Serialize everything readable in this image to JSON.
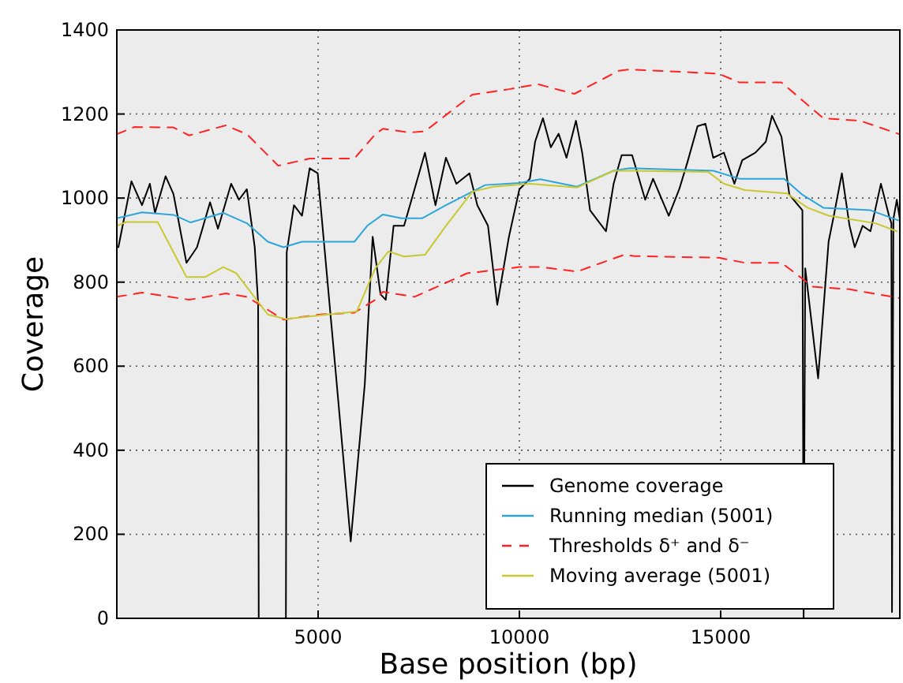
{
  "chart_data": {
    "type": "line",
    "xlabel": "Base position (bp)",
    "ylabel": "Coverage",
    "xlim": [
      0,
      19450
    ],
    "ylim": [
      0,
      1400
    ],
    "xticks": [
      5000,
      10000,
      15000
    ],
    "yticks": [
      0,
      200,
      400,
      600,
      800,
      1000,
      1200,
      1400
    ],
    "grid": true,
    "legend": "bottom right",
    "series": [
      {
        "name": "Genome coverage",
        "color": "#000000",
        "line_style": "solid",
        "x": [
          39,
          363,
          625,
          820,
          949,
          1211,
          1406,
          1730,
          1992,
          2316,
          2512,
          2840,
          3035,
          3230,
          3426,
          3510,
          3525,
          4200,
          4220,
          4400,
          4600,
          4790,
          4990,
          5440,
          5810,
          6160,
          6355,
          6550,
          6680,
          6875,
          7135,
          7655,
          7915,
          8175,
          8435,
          8760,
          8955,
          9220,
          9450,
          9740,
          10000,
          10260,
          10390,
          10585,
          10780,
          10975,
          11170,
          11405,
          11560,
          11755,
          12150,
          12340,
          12540,
          12800,
          13125,
          13320,
          13710,
          13970,
          14170,
          14425,
          14620,
          14815,
          15080,
          15340,
          15535,
          15860,
          16120,
          16275,
          16510,
          16705,
          17030,
          17060,
          17100,
          17420,
          17550,
          17680,
          17810,
          18010,
          18200,
          18330,
          18525,
          18720,
          18980,
          19180,
          19240,
          19255,
          19290,
          19375,
          19450
        ],
        "values": [
          883,
          1040,
          983,
          1034,
          965,
          1052,
          1010,
          846,
          883,
          990,
          927,
          1034,
          996,
          1021,
          883,
          750,
          0,
          0,
          871,
          983,
          958,
          1071,
          1059,
          583,
          183,
          558,
          908,
          771,
          758,
          934,
          934,
          1108,
          983,
          1096,
          1034,
          1059,
          983,
          934,
          746,
          908,
          1021,
          1046,
          1134,
          1190,
          1121,
          1153,
          1096,
          1184,
          1108,
          971,
          921,
          1034,
          1102,
          1102,
          996,
          1046,
          958,
          1021,
          1084,
          1171,
          1177,
          1096,
          1108,
          1034,
          1090,
          1108,
          1134,
          1196,
          1146,
          1008,
          971,
          0,
          833,
          571,
          733,
          896,
          958,
          1059,
          934,
          883,
          934,
          921,
          1034,
          958,
          940,
          15,
          950,
          996,
          950
        ]
      },
      {
        "name": "Running median (5001)",
        "color": "#2ca6d9",
        "line_style": "solid",
        "x": [
          0,
          625,
          1406,
          1836,
          2644,
          3230,
          3750,
          4140,
          4600,
          5900,
          6220,
          6610,
          7070,
          7590,
          8175,
          9150,
          10000,
          10520,
          11430,
          12340,
          12735,
          14815,
          15470,
          16575,
          17030,
          17550,
          18720,
          19440
        ],
        "values": [
          952,
          966,
          960,
          942,
          965,
          940,
          896,
          883,
          896,
          896,
          934,
          961,
          952,
          952,
          983,
          1031,
          1036,
          1045,
          1027,
          1065,
          1071,
          1065,
          1046,
          1046,
          1008,
          977,
          971,
          946
        ]
      },
      {
        "name": "Thresholds δ⁺ and δ⁻",
        "color": "#ff2222",
        "line_style": "dashed",
        "x": [
          0,
          430,
          1406,
          1797,
          2707,
          3230,
          4010,
          4790,
          5900,
          6420,
          6610,
          7265,
          7655,
          8830,
          9740,
          10455,
          11365,
          12470,
          12735,
          14950,
          15470,
          16510,
          17550,
          18465,
          19440
        ],
        "values": [
          1152,
          1169,
          1168,
          1149,
          1173,
          1152,
          1077,
          1094,
          1094,
          1152,
          1165,
          1156,
          1159,
          1246,
          1259,
          1271,
          1248,
          1303,
          1306,
          1296,
          1275,
          1275,
          1190,
          1184,
          1152
        ]
      },
      {
        "color": "#ff2222",
        "line_style": "dashed",
        "x": [
          0,
          625,
          1797,
          2707,
          3230,
          4140,
          5050,
          5900,
          6420,
          6610,
          7395,
          8700,
          10000,
          10520,
          11430,
          12600,
          12860,
          14950,
          15600,
          16510,
          17290,
          18200,
          19440
        ],
        "values": [
          765,
          775,
          758,
          773,
          765,
          711,
          723,
          727,
          758,
          777,
          765,
          821,
          836,
          836,
          825,
          865,
          862,
          858,
          846,
          846,
          789,
          783,
          762
        ]
      },
      {
        "name": "Moving average (5001)",
        "color": "#c8c832",
        "line_style": "solid",
        "x": [
          0,
          234,
          1015,
          1730,
          2187,
          2644,
          2970,
          3750,
          4200,
          5050,
          5960,
          6420,
          6745,
          7135,
          7655,
          8175,
          8830,
          9350,
          10260,
          11430,
          12340,
          12735,
          14690,
          15080,
          15600,
          16640,
          17160,
          17680,
          18850,
          19375
        ],
        "values": [
          934,
          943,
          943,
          812,
          812,
          836,
          821,
          723,
          712,
          721,
          730,
          833,
          873,
          861,
          865,
          934,
          1015,
          1027,
          1034,
          1025,
          1065,
          1065,
          1062,
          1034,
          1019,
          1011,
          977,
          958,
          940,
          921
        ]
      }
    ]
  }
}
